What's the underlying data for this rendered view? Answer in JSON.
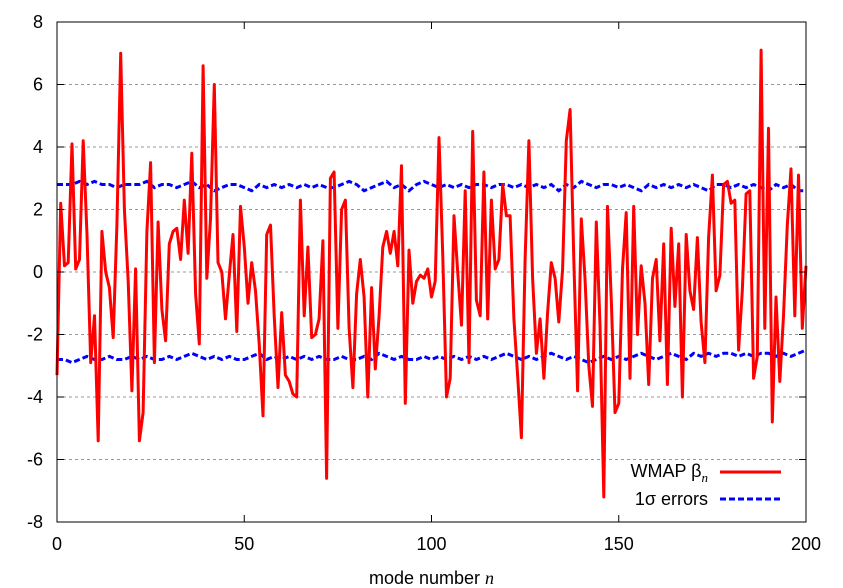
{
  "chart_data": {
    "type": "line",
    "title": "",
    "xlabel_prefix": "mode number ",
    "xlabel_var": "n",
    "ylabel": "",
    "xlim": [
      0,
      200
    ],
    "ylim": [
      -8,
      8
    ],
    "xticks": [
      0,
      50,
      100,
      150,
      200
    ],
    "yticks": [
      -8,
      -6,
      -4,
      -2,
      0,
      2,
      4,
      6,
      8
    ],
    "grid": "horizontal dotted at y ticks",
    "legend_position": "bottom-right",
    "series": [
      {
        "name_main": "WMAP β",
        "name_sub": "n",
        "color": "#ff0000",
        "style": "solid",
        "x": [
          0,
          1,
          2,
          3,
          4,
          5,
          6,
          7,
          8,
          9,
          10,
          11,
          12,
          13,
          14,
          15,
          16,
          17,
          18,
          19,
          20,
          21,
          22,
          23,
          24,
          25,
          26,
          27,
          28,
          29,
          30,
          31,
          32,
          33,
          34,
          35,
          36,
          37,
          38,
          39,
          40,
          41,
          42,
          43,
          44,
          45,
          46,
          47,
          48,
          49,
          50,
          51,
          52,
          53,
          54,
          55,
          56,
          57,
          58,
          59,
          60,
          61,
          62,
          63,
          64,
          65,
          66,
          67,
          68,
          69,
          70,
          71,
          72,
          73,
          74,
          75,
          76,
          77,
          78,
          79,
          80,
          81,
          82,
          83,
          84,
          85,
          86,
          87,
          88,
          89,
          90,
          91,
          92,
          93,
          94,
          95,
          96,
          97,
          98,
          99,
          100,
          101,
          102,
          103,
          104,
          105,
          106,
          107,
          108,
          109,
          110,
          111,
          112,
          113,
          114,
          115,
          116,
          117,
          118,
          119,
          120,
          121,
          122,
          123,
          124,
          125,
          126,
          127,
          128,
          129,
          130,
          131,
          132,
          133,
          134,
          135,
          136,
          137,
          138,
          139,
          140,
          141,
          142,
          143,
          144,
          145,
          146,
          147,
          148,
          149,
          150,
          151,
          152,
          153,
          154,
          155,
          156,
          157,
          158,
          159,
          160,
          161,
          162,
          163,
          164,
          165,
          166,
          167,
          168,
          169,
          170,
          171,
          172,
          173,
          174,
          175,
          176,
          177,
          178,
          179,
          180,
          181,
          182,
          183,
          184,
          185,
          186,
          187,
          188,
          189,
          190,
          191,
          192,
          193,
          194,
          195,
          196,
          197,
          198,
          199,
          200
        ],
        "values": [
          -3.3,
          2.2,
          0.2,
          0.3,
          4.1,
          0.1,
          0.4,
          4.2,
          1.2,
          -2.9,
          -1.4,
          -5.4,
          1.3,
          0.0,
          -0.5,
          -2.1,
          1.5,
          7.0,
          2.0,
          -0.3,
          -3.8,
          0.1,
          -5.4,
          -4.5,
          1.3,
          3.5,
          -2.9,
          1.6,
          -1.2,
          -2.2,
          0.9,
          1.3,
          1.4,
          0.4,
          2.3,
          0.6,
          3.8,
          -0.7,
          -2.3,
          6.6,
          -0.2,
          1.7,
          6.0,
          0.3,
          0.0,
          -1.5,
          -0.1,
          1.2,
          -1.9,
          2.1,
          0.8,
          -1.0,
          0.3,
          -0.6,
          -2.3,
          -4.6,
          1.2,
          1.5,
          -1.4,
          -3.7,
          -1.3,
          -3.3,
          -3.5,
          -3.9,
          -4.0,
          2.3,
          -1.4,
          0.8,
          -2.1,
          -2.0,
          -1.5,
          1.0,
          -6.6,
          3.0,
          3.2,
          -1.8,
          2.0,
          2.3,
          -1.8,
          -3.7,
          -0.7,
          0.4,
          -0.8,
          -4.0,
          -0.5,
          -3.1,
          -1.4,
          0.8,
          1.3,
          0.6,
          1.3,
          0.2,
          3.4,
          -4.2,
          0.7,
          -1.0,
          -0.3,
          -0.1,
          -0.2,
          0.1,
          -0.8,
          -0.3,
          4.3,
          0.6,
          -4.0,
          -3.4,
          1.8,
          0.0,
          -1.7,
          2.6,
          -2.9,
          4.5,
          -0.9,
          -1.4,
          3.2,
          -1.5,
          2.3,
          0.1,
          0.4,
          2.8,
          1.8,
          1.8,
          -1.5,
          -3.3,
          -5.3,
          0.4,
          4.2,
          -0.2,
          -2.6,
          -1.5,
          -3.4,
          -1.3,
          0.3,
          -0.2,
          -1.6,
          0.1,
          4.2,
          5.2,
          0.4,
          -3.8,
          1.7,
          -0.2,
          -3.0,
          -4.3,
          1.6,
          -1.7,
          -7.2,
          2.1,
          -0.9,
          -4.5,
          -4.2,
          0.1,
          1.9,
          -3.4,
          2.1,
          -2.0,
          0.2,
          -1.0,
          -3.6,
          -0.2,
          0.4,
          -2.2,
          0.9,
          -3.6,
          1.4,
          -1.1,
          0.9,
          -4.0,
          1.2,
          -0.6,
          -1.2,
          1.1,
          -1.6,
          -2.9,
          1.1,
          3.1,
          -0.6,
          -0.1,
          2.8,
          2.9,
          2.2,
          2.3,
          -2.5,
          -0.6,
          2.5,
          2.6,
          -3.4,
          -2.7,
          7.1,
          -1.8,
          4.6,
          -4.8,
          -0.8,
          -3.5,
          -1.4,
          1.5,
          3.3,
          -1.4,
          3.1,
          -1.8,
          0.2
        ]
      },
      {
        "name_main": "1σ errors",
        "color": "#0000ff",
        "style": "dashed",
        "x_upper": [
          0,
          2,
          4,
          6,
          8,
          10,
          12,
          14,
          16,
          18,
          20,
          22,
          24,
          26,
          28,
          30,
          32,
          34,
          36,
          38,
          40,
          42,
          44,
          46,
          48,
          50,
          52,
          54,
          56,
          58,
          60,
          62,
          64,
          66,
          68,
          70,
          72,
          74,
          76,
          78,
          80,
          82,
          84,
          86,
          88,
          90,
          92,
          94,
          96,
          98,
          100,
          102,
          104,
          106,
          108,
          110,
          112,
          114,
          116,
          118,
          120,
          122,
          124,
          126,
          128,
          130,
          132,
          134,
          136,
          138,
          140,
          142,
          144,
          146,
          148,
          150,
          152,
          154,
          156,
          158,
          160,
          162,
          164,
          166,
          168,
          170,
          172,
          174,
          176,
          178,
          180,
          182,
          184,
          186,
          188,
          190,
          192,
          194,
          196,
          198,
          200
        ],
        "upper": [
          2.8,
          2.8,
          2.8,
          2.9,
          2.8,
          2.9,
          2.8,
          2.8,
          2.7,
          2.8,
          2.8,
          2.8,
          2.9,
          2.7,
          2.8,
          2.8,
          2.7,
          2.8,
          2.9,
          2.7,
          2.8,
          2.6,
          2.7,
          2.8,
          2.8,
          2.7,
          2.6,
          2.8,
          2.7,
          2.8,
          2.7,
          2.8,
          2.7,
          2.8,
          2.7,
          2.8,
          2.7,
          2.7,
          2.8,
          2.9,
          2.8,
          2.6,
          2.7,
          2.8,
          2.9,
          2.7,
          2.8,
          2.6,
          2.8,
          2.9,
          2.8,
          2.7,
          2.8,
          2.7,
          2.8,
          2.7,
          2.8,
          2.8,
          2.7,
          2.8,
          2.8,
          2.7,
          2.8,
          2.7,
          2.8,
          2.7,
          2.8,
          2.6,
          2.8,
          2.7,
          2.9,
          2.8,
          2.7,
          2.8,
          2.8,
          2.7,
          2.8,
          2.7,
          2.6,
          2.8,
          2.7,
          2.8,
          2.7,
          2.8,
          2.7,
          2.8,
          2.7,
          2.6,
          2.8,
          2.8,
          2.7,
          2.8,
          2.7,
          2.8,
          2.7,
          2.6,
          2.8,
          2.7,
          2.8,
          2.6,
          2.6
        ],
        "lower": [
          -2.8,
          -2.8,
          -2.9,
          -2.8,
          -2.7,
          -2.8,
          -2.8,
          -2.7,
          -2.8,
          -2.8,
          -2.7,
          -2.8,
          -2.7,
          -2.8,
          -2.8,
          -2.7,
          -2.8,
          -2.7,
          -2.6,
          -2.7,
          -2.8,
          -2.7,
          -2.8,
          -2.7,
          -2.8,
          -2.8,
          -2.7,
          -2.6,
          -2.8,
          -2.7,
          -2.8,
          -2.7,
          -2.8,
          -2.7,
          -2.8,
          -2.7,
          -2.8,
          -2.8,
          -2.7,
          -2.8,
          -2.8,
          -2.7,
          -2.8,
          -2.6,
          -2.7,
          -2.8,
          -2.7,
          -2.8,
          -2.8,
          -2.7,
          -2.8,
          -2.7,
          -2.8,
          -2.7,
          -2.8,
          -2.7,
          -2.8,
          -2.7,
          -2.8,
          -2.7,
          -2.6,
          -2.7,
          -2.8,
          -2.7,
          -2.8,
          -2.7,
          -2.6,
          -2.7,
          -2.8,
          -2.7,
          -2.8,
          -2.9,
          -2.8,
          -2.7,
          -2.8,
          -2.7,
          -2.8,
          -2.7,
          -2.6,
          -2.7,
          -2.8,
          -2.7,
          -2.6,
          -2.7,
          -2.8,
          -2.6,
          -2.7,
          -2.6,
          -2.7,
          -2.6,
          -2.6,
          -2.7,
          -2.6,
          -2.7,
          -2.6,
          -2.6,
          -2.7,
          -2.6,
          -2.7,
          -2.6,
          -2.5
        ]
      }
    ]
  }
}
